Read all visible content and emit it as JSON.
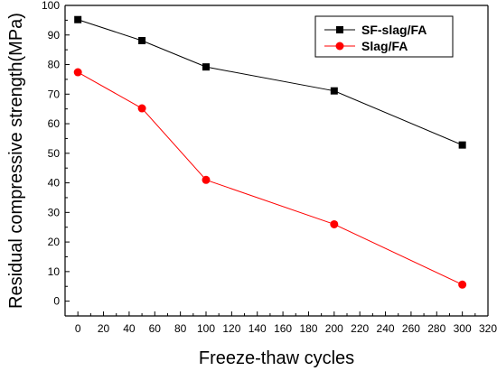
{
  "chart_data": {
    "type": "line",
    "xlabel": "Freeze-thaw cycles",
    "ylabel": "Residual compressive strength(MPa)",
    "xlim": [
      -10,
      320
    ],
    "ylim": [
      -5,
      100
    ],
    "x_ticks": [
      0,
      20,
      40,
      60,
      80,
      100,
      120,
      140,
      160,
      180,
      200,
      220,
      240,
      260,
      280,
      300,
      320
    ],
    "y_ticks": [
      0,
      10,
      20,
      30,
      40,
      50,
      60,
      70,
      80,
      90,
      100
    ],
    "grid": false,
    "legend_position": "top-right",
    "series": [
      {
        "name": "SF-slag/FA",
        "color": "#000000",
        "marker": "square",
        "x": [
          0,
          50,
          100,
          200,
          300
        ],
        "values": [
          95.2,
          88.1,
          79.2,
          71.1,
          52.8
        ]
      },
      {
        "name": "Slag/FA",
        "color": "#ff0000",
        "marker": "circle",
        "x": [
          0,
          50,
          100,
          200,
          300
        ],
        "values": [
          77.4,
          65.2,
          41.0,
          26.0,
          5.6
        ]
      }
    ]
  }
}
